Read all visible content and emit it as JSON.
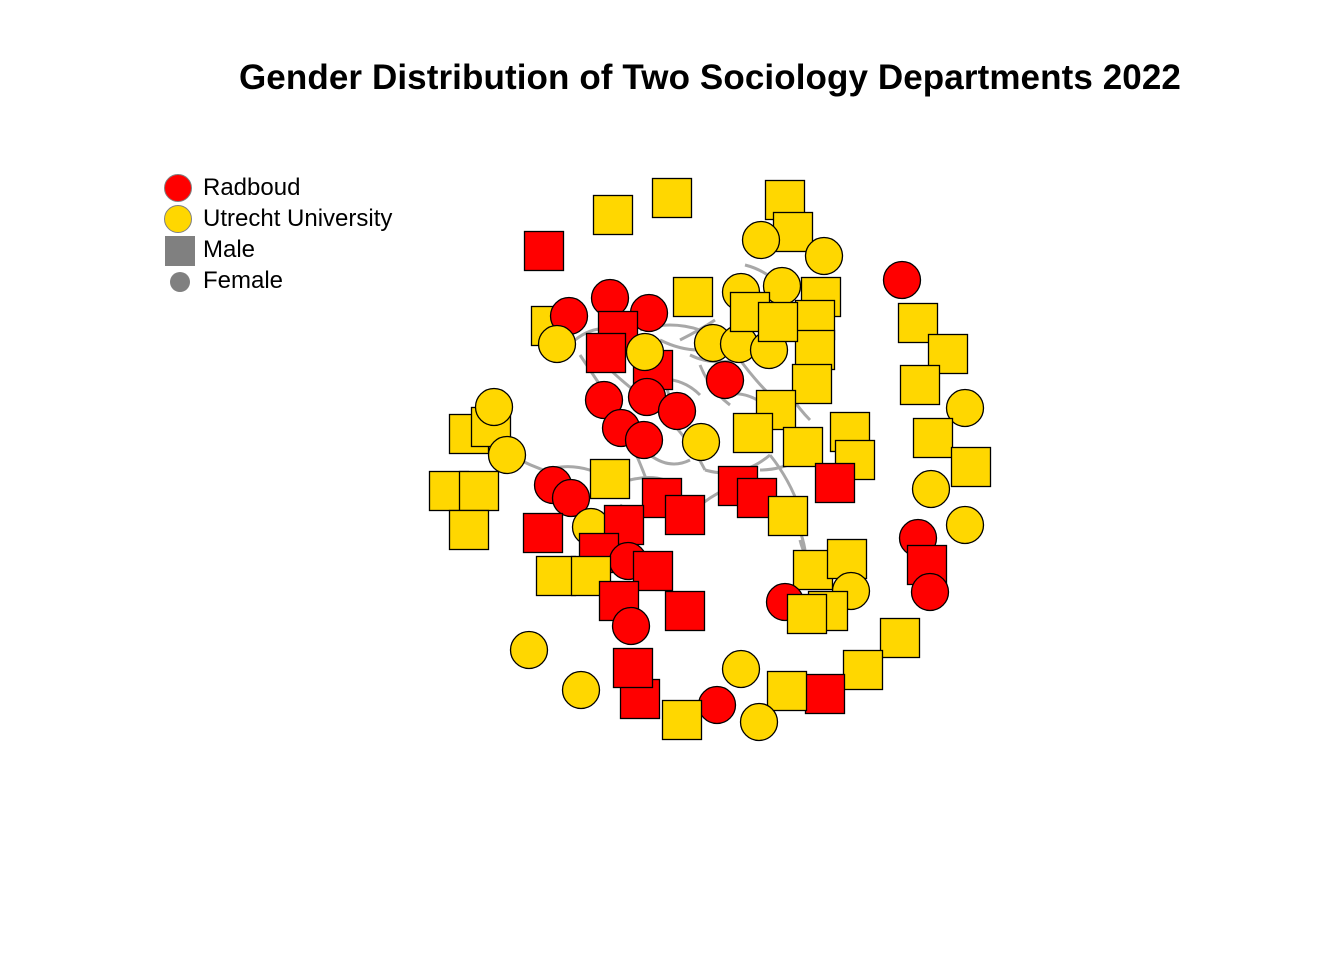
{
  "title": "Gender Distribution of Two Sociology Departments 2022",
  "colors": {
    "radboud": "#FF0000",
    "utrecht": "#FFD700",
    "gender_swatch": "#808080",
    "edge": "#A8A8A8",
    "node_border": "#000000"
  },
  "legend": [
    {
      "label": "Radboud",
      "symbol": "circle",
      "color": "#FF0000"
    },
    {
      "label": "Utrecht University",
      "symbol": "circle",
      "color": "#FFD700"
    },
    {
      "label": "Male",
      "symbol": "square",
      "color": "#808080"
    },
    {
      "label": "Female",
      "symbol": "dot",
      "color": "#808080"
    }
  ]
}
